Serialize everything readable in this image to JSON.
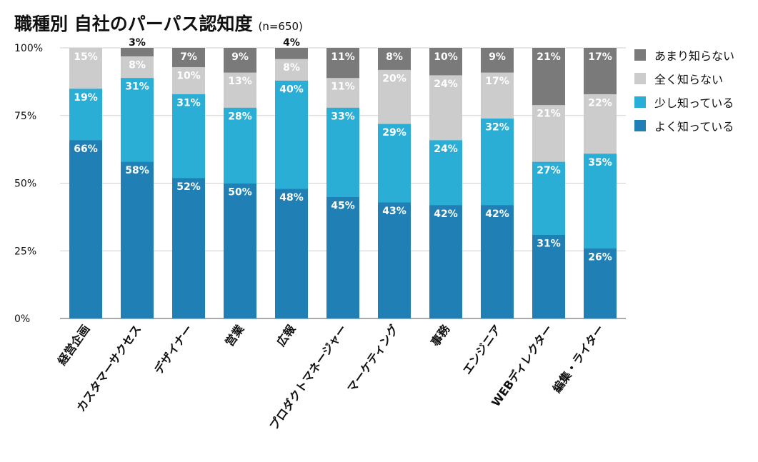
{
  "chart_data": {
    "type": "bar",
    "stacked": true,
    "title": "職種別 自社のパーパス認知度",
    "subtitle": "(n=650)",
    "categories": [
      "経営企画",
      "カスタマーサクセス",
      "デザイナー",
      "営業",
      "広報",
      "プロダクトマネージャー",
      "マーケティング",
      "事務",
      "エンジニア",
      "WEBディレクター",
      "編集・ライター"
    ],
    "series": [
      {
        "name": "よく知っている",
        "color": "#2080b5",
        "values": [
          66,
          58,
          52,
          50,
          48,
          45,
          43,
          42,
          42,
          31,
          26
        ]
      },
      {
        "name": "少し知っている",
        "color": "#2aaed6",
        "values": [
          19,
          31,
          31,
          28,
          40,
          33,
          29,
          24,
          32,
          27,
          35
        ]
      },
      {
        "name": "全く知らない",
        "color": "#cccccc",
        "values": [
          15,
          8,
          10,
          13,
          8,
          11,
          20,
          24,
          17,
          21,
          22
        ]
      },
      {
        "name": "あまり知らない",
        "color": "#7a7a7a",
        "values": [
          0,
          3,
          7,
          9,
          4,
          11,
          8,
          10,
          9,
          21,
          17
        ]
      }
    ],
    "legend_order": [
      "あまり知らない",
      "全く知らない",
      "少し知っている",
      "よく知っている"
    ],
    "yticks": [
      "0%",
      "25%",
      "50%",
      "75%",
      "100%"
    ],
    "ylim": [
      0,
      100
    ],
    "grid": true,
    "legend_position": "right"
  }
}
